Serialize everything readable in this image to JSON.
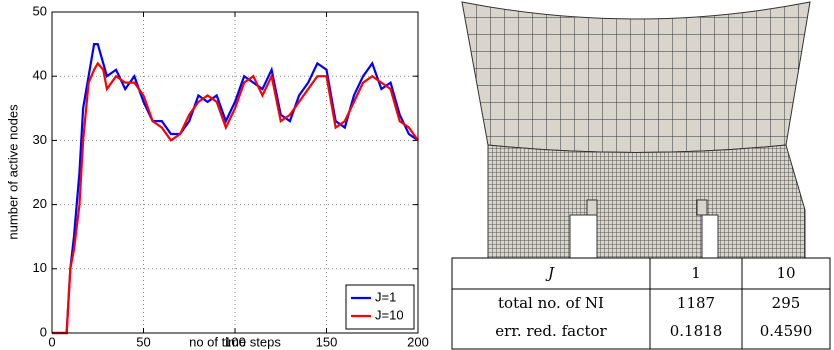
{
  "chart_data": {
    "type": "line",
    "xlabel": "no of time steps",
    "ylabel": "number of active nodes",
    "x": [
      0,
      5,
      8,
      10,
      12,
      15,
      17,
      20,
      23,
      25,
      28,
      30,
      35,
      40,
      45,
      50,
      55,
      60,
      65,
      70,
      75,
      80,
      85,
      90,
      95,
      100,
      105,
      110,
      115,
      120,
      125,
      130,
      135,
      140,
      145,
      150,
      155,
      160,
      165,
      170,
      175,
      180,
      185,
      190,
      195,
      200
    ],
    "series": [
      {
        "name": "J=1",
        "color": "#0000ff",
        "values": [
          0,
          0,
          0,
          10,
          15,
          25,
          35,
          40,
          45,
          45,
          42,
          40,
          41,
          38,
          40,
          36,
          33,
          33,
          31,
          31,
          33,
          37,
          36,
          37,
          33,
          36,
          40,
          39,
          38,
          41,
          34,
          33,
          37,
          39,
          42,
          41,
          33,
          32,
          37,
          40,
          42,
          38,
          39,
          34,
          31,
          30
        ]
      },
      {
        "name": "J=10",
        "color": "#ff0000",
        "values": [
          0,
          0,
          0,
          10,
          13,
          20,
          30,
          39,
          41,
          42,
          41,
          38,
          40,
          39,
          39,
          37,
          33,
          32,
          30,
          31,
          34,
          36,
          37,
          36,
          32,
          35,
          39,
          40,
          37,
          40,
          33,
          34,
          36,
          38,
          40,
          40,
          32,
          33,
          36,
          39,
          40,
          39,
          38,
          33,
          32,
          30
        ]
      }
    ],
    "xlim": [
      0,
      200
    ],
    "xticks": [
      0,
      50,
      100,
      150,
      200
    ],
    "ylim": [
      0,
      50
    ],
    "yticks": [
      0,
      10,
      20,
      30,
      40,
      50
    ],
    "grid": true,
    "legend": "lower right"
  },
  "table": {
    "header": [
      "J",
      "1",
      "10"
    ],
    "rows": [
      [
        "total no. of NI",
        "1187",
        "295"
      ],
      [
        "err. red. factor",
        "0.1818",
        "0.4590"
      ]
    ]
  }
}
